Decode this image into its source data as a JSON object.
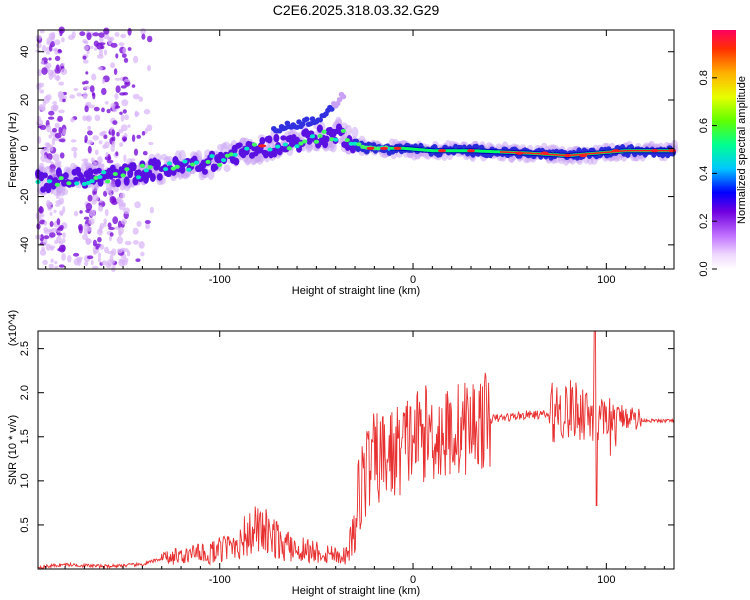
{
  "title": "C2E6.2025.318.03.32.G29",
  "colors": {
    "snr_line": "#e83030",
    "track": "#2a2ad8",
    "track_core": "#00e8c8",
    "hot": "#ff2020",
    "noise": "#8a2be2"
  },
  "chart_data": [
    {
      "type": "heatmap",
      "name": "spectrogram",
      "title": "C2E6.2025.318.03.32.G29",
      "xlabel": "Height of straight line (km)",
      "ylabel": "Frequency (Hz)",
      "xlim": [
        -194,
        135
      ],
      "ylim": [
        -50,
        49
      ],
      "xticks": [
        -100,
        0,
        100
      ],
      "yticks": [
        -40,
        -20,
        0,
        20,
        40
      ],
      "colorbar": {
        "label": "Normalized spectral amplitude",
        "range": [
          0,
          1
        ],
        "ticks": [
          0.0,
          0.2,
          0.4,
          0.6,
          0.8
        ]
      },
      "ridge": [
        [
          -194,
          -14
        ],
        [
          -180,
          -13
        ],
        [
          -165,
          -12
        ],
        [
          -150,
          -11
        ],
        [
          -135,
          -9
        ],
        [
          -120,
          -8
        ],
        [
          -105,
          -6
        ],
        [
          -95,
          -3
        ],
        [
          -85,
          -1
        ],
        [
          -75,
          1
        ],
        [
          -65,
          2
        ],
        [
          -55,
          4
        ],
        [
          -45,
          5
        ],
        [
          -38,
          6
        ],
        [
          -32,
          3
        ],
        [
          -25,
          0
        ],
        [
          -15,
          0
        ],
        [
          -5,
          0
        ],
        [
          10,
          -1
        ],
        [
          30,
          -1
        ],
        [
          60,
          -2
        ],
        [
          80,
          -3
        ],
        [
          95,
          -2
        ],
        [
          110,
          -1
        ],
        [
          135,
          -1
        ]
      ],
      "secondary_branch": [
        [
          -70,
          8
        ],
        [
          -60,
          10
        ],
        [
          -50,
          12
        ],
        [
          -42,
          16
        ],
        [
          -35,
          24
        ]
      ]
    },
    {
      "type": "line",
      "name": "snr",
      "xlabel": "Height of straight line (km)",
      "ylabel": "SNR (10 * v/v)",
      "y_multiplier": "(x10^4)",
      "xlim": [
        -194,
        135
      ],
      "ylim": [
        0,
        2.7
      ],
      "xticks": [
        -100,
        0,
        100
      ],
      "yticks": [
        0.5,
        1.0,
        1.5,
        2.0,
        2.5
      ],
      "envelope": [
        [
          -194,
          0.02
        ],
        [
          -180,
          0.05
        ],
        [
          -160,
          0.03
        ],
        [
          -140,
          0.05
        ],
        [
          -130,
          0.12
        ],
        [
          -120,
          0.15
        ],
        [
          -105,
          0.18
        ],
        [
          -95,
          0.25
        ],
        [
          -88,
          0.35
        ],
        [
          -80,
          0.45
        ],
        [
          -72,
          0.35
        ],
        [
          -65,
          0.25
        ],
        [
          -55,
          0.22
        ],
        [
          -45,
          0.18
        ],
        [
          -35,
          0.15
        ],
        [
          -30,
          0.45
        ],
        [
          -27,
          1.0
        ],
        [
          -22,
          1.2
        ],
        [
          -18,
          1.25
        ],
        [
          -10,
          1.3
        ],
        [
          -5,
          1.4
        ],
        [
          0,
          1.5
        ],
        [
          8,
          1.55
        ],
        [
          15,
          1.5
        ],
        [
          25,
          1.6
        ],
        [
          40,
          1.7
        ],
        [
          60,
          1.75
        ],
        [
          70,
          1.75
        ],
        [
          75,
          1.8
        ],
        [
          85,
          1.8
        ],
        [
          90,
          1.8
        ],
        [
          95,
          1.65
        ],
        [
          100,
          1.55
        ],
        [
          105,
          1.7
        ],
        [
          110,
          1.75
        ],
        [
          115,
          1.7
        ],
        [
          125,
          1.68
        ],
        [
          135,
          1.68
        ]
      ],
      "peak": {
        "x": 94,
        "y": 2.7
      }
    }
  ]
}
